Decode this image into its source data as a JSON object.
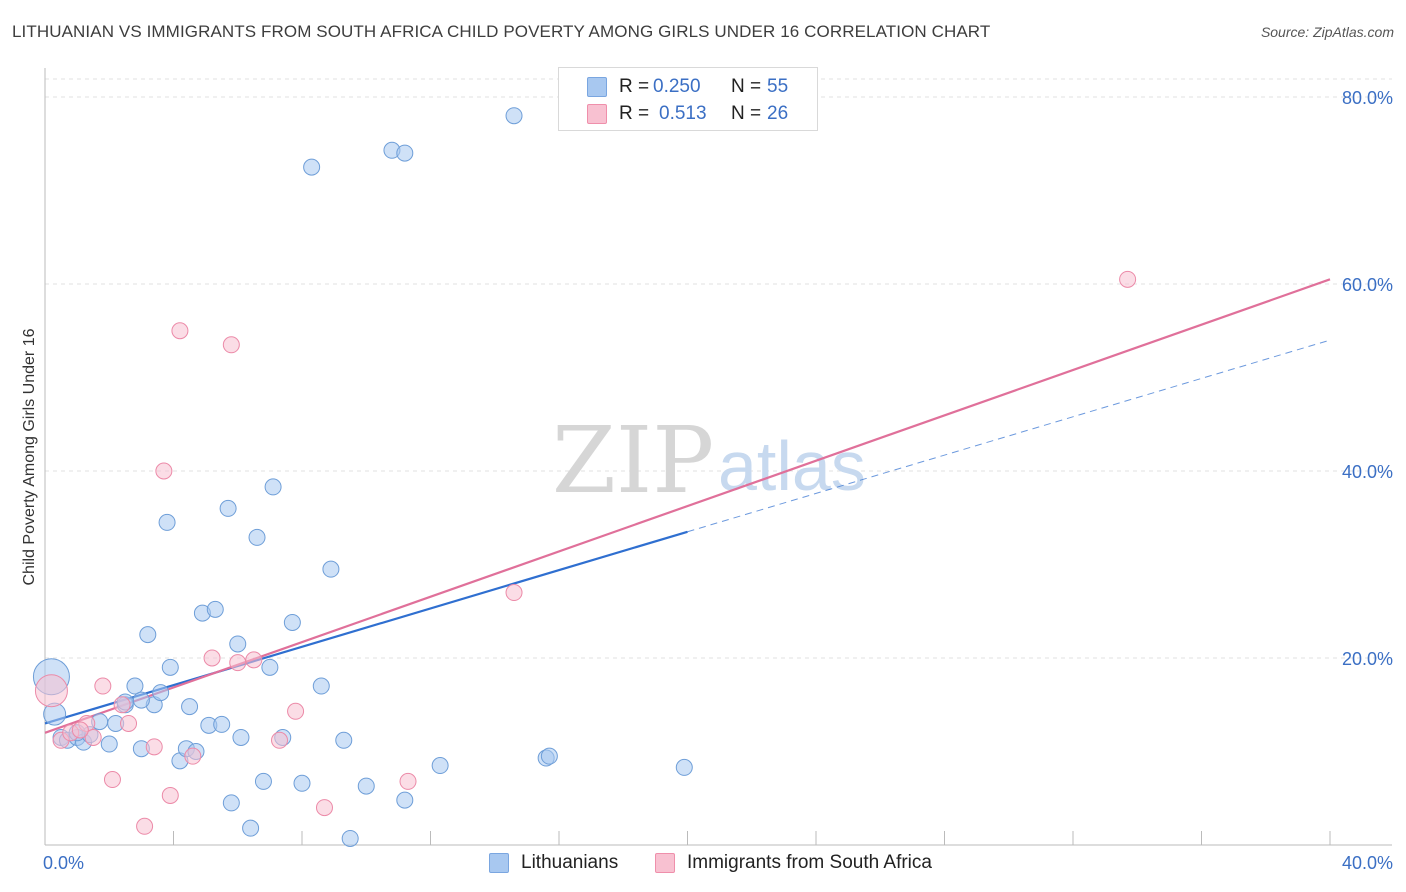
{
  "title": "LITHUANIAN VS IMMIGRANTS FROM SOUTH AFRICA CHILD POVERTY AMONG GIRLS UNDER 16 CORRELATION CHART",
  "source": "Source: ZipAtlas.com",
  "watermark": {
    "zip": "ZIP",
    "atlas": "atlas"
  },
  "legend": {
    "r_label": "R =",
    "n_label": "N =",
    "rows": [
      {
        "r": "0.250",
        "n": "55",
        "color": "#a8c8f0",
        "border": "#7aa6e0"
      },
      {
        "r": "0.513",
        "n": "26",
        "color": "#f8c1d1",
        "border": "#ef8fab"
      }
    ]
  },
  "bottom_legend": [
    {
      "label": "Lithuanians",
      "color": "#a8c8f0",
      "border": "#7aa6e0"
    },
    {
      "label": "Immigrants from South Africa",
      "color": "#f8c1d1",
      "border": "#ef8fab"
    }
  ],
  "chart_data": {
    "type": "scatter",
    "xlabel": "",
    "ylabel": "Child Poverty Among Girls Under 16",
    "xlim": [
      0,
      40
    ],
    "ylim": [
      0,
      80
    ],
    "x_tick_labels": [
      {
        "value": 0,
        "label": "0.0%"
      },
      {
        "value": 40,
        "label": "40.0%"
      }
    ],
    "y_tick_labels": [
      {
        "value": 20,
        "label": "20.0%"
      },
      {
        "value": 40,
        "label": "40.0%"
      },
      {
        "value": 60,
        "label": "60.0%"
      },
      {
        "value": 80,
        "label": "80.0%"
      }
    ],
    "series": [
      {
        "name": "Lithuanians",
        "color": "#a8c8f0",
        "stroke": "#6e9ed8",
        "trend_color": "#2f6fd0",
        "trend": {
          "x0": 0,
          "y0": 13.0,
          "x1": 20,
          "y1": 33.5,
          "dash_x1": 40,
          "dash_y1": 54.0
        },
        "points": [
          [
            0.2,
            18.0,
            18
          ],
          [
            0.3,
            14.0,
            11
          ],
          [
            0.5,
            11.5,
            8
          ],
          [
            0.7,
            11.2,
            8
          ],
          [
            1.0,
            11.5,
            8
          ],
          [
            1.2,
            11.0,
            8
          ],
          [
            1.4,
            11.8,
            8
          ],
          [
            1.7,
            13.2,
            8
          ],
          [
            2.0,
            10.8,
            8
          ],
          [
            2.2,
            13.0,
            8
          ],
          [
            2.5,
            15.0,
            8
          ],
          [
            2.8,
            17.0,
            8
          ],
          [
            3.0,
            10.3,
            8
          ],
          [
            3.2,
            22.5,
            8
          ],
          [
            3.4,
            15.0,
            8
          ],
          [
            3.6,
            16.3,
            8
          ],
          [
            3.8,
            34.5,
            8
          ],
          [
            3.9,
            19.0,
            8
          ],
          [
            4.2,
            9.0,
            8
          ],
          [
            4.4,
            10.3,
            8
          ],
          [
            4.5,
            14.8,
            8
          ],
          [
            4.7,
            10.0,
            8
          ],
          [
            4.9,
            24.8,
            8
          ],
          [
            5.1,
            12.8,
            8
          ],
          [
            5.3,
            25.2,
            8
          ],
          [
            5.5,
            12.9,
            8
          ],
          [
            5.7,
            36.0,
            8
          ],
          [
            5.8,
            4.5,
            8
          ],
          [
            6.0,
            21.5,
            8
          ],
          [
            6.1,
            11.5,
            8
          ],
          [
            6.4,
            1.8,
            8
          ],
          [
            6.6,
            32.9,
            8
          ],
          [
            6.8,
            6.8,
            8
          ],
          [
            7.0,
            19.0,
            8
          ],
          [
            7.1,
            38.3,
            8
          ],
          [
            7.4,
            11.5,
            8
          ],
          [
            7.7,
            23.8,
            8
          ],
          [
            8.0,
            6.6,
            8
          ],
          [
            8.3,
            72.5,
            8
          ],
          [
            8.6,
            17.0,
            8
          ],
          [
            8.9,
            29.5,
            8
          ],
          [
            9.3,
            11.2,
            8
          ],
          [
            9.5,
            0.7,
            8
          ],
          [
            10.0,
            6.3,
            8
          ],
          [
            10.8,
            74.3,
            8
          ],
          [
            11.2,
            74.0,
            8
          ],
          [
            11.2,
            4.8,
            8
          ],
          [
            12.3,
            8.5,
            8
          ],
          [
            14.6,
            78.0,
            8
          ],
          [
            15.6,
            9.3,
            8
          ],
          [
            15.7,
            9.5,
            8
          ],
          [
            19.9,
            8.3,
            8
          ],
          [
            2.5,
            15.3,
            8
          ],
          [
            1.0,
            12.0,
            8
          ],
          [
            3.0,
            15.5,
            8
          ]
        ]
      },
      {
        "name": "Immigrants from South Africa",
        "color": "#f8c1d1",
        "stroke": "#ec8aa8",
        "trend_color": "#e0709a",
        "trend": {
          "x0": 0,
          "y0": 12.0,
          "x1": 40,
          "y1": 60.5
        },
        "points": [
          [
            0.2,
            16.5,
            16
          ],
          [
            0.5,
            11.2,
            8
          ],
          [
            0.8,
            12.0,
            8
          ],
          [
            1.3,
            13.0,
            8
          ],
          [
            1.5,
            11.5,
            8
          ],
          [
            1.8,
            17.0,
            8
          ],
          [
            2.1,
            7.0,
            8
          ],
          [
            2.4,
            15.0,
            8
          ],
          [
            2.6,
            13.0,
            8
          ],
          [
            3.1,
            2.0,
            8
          ],
          [
            3.4,
            10.5,
            8
          ],
          [
            3.7,
            40.0,
            8
          ],
          [
            3.9,
            5.3,
            8
          ],
          [
            4.2,
            55.0,
            8
          ],
          [
            4.6,
            9.5,
            8
          ],
          [
            5.2,
            20.0,
            8
          ],
          [
            5.8,
            53.5,
            8
          ],
          [
            6.5,
            19.8,
            8
          ],
          [
            7.3,
            11.2,
            8
          ],
          [
            7.8,
            14.3,
            8
          ],
          [
            8.7,
            4.0,
            8
          ],
          [
            11.3,
            6.8,
            8
          ],
          [
            14.6,
            27.0,
            8
          ],
          [
            33.7,
            60.5,
            8
          ],
          [
            6.0,
            19.5,
            8
          ],
          [
            1.1,
            12.3,
            8
          ]
        ]
      }
    ]
  }
}
